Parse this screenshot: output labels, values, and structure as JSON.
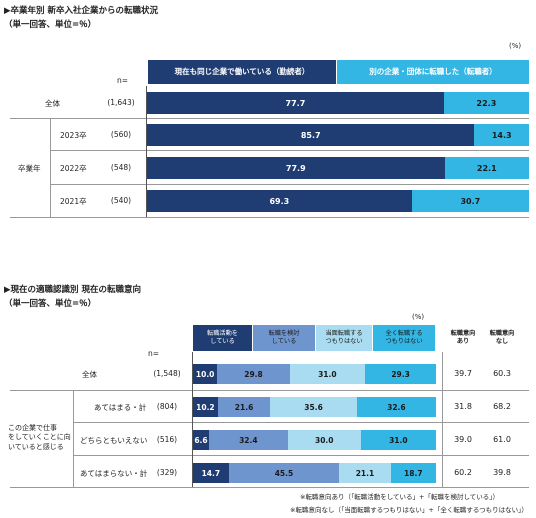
{
  "chart1": {
    "title": "▶卒業年別 新卒入社企業からの転職状況",
    "subtitle": "（単一回答、単位=％）",
    "unit": "(%)",
    "n_label": "n=",
    "legend": [
      {
        "label": "現在も同じ企業で働いている（勤続者）",
        "color": "#1f3d73"
      },
      {
        "label": "別の企業・団体に転職した（転職者）",
        "color": "#33b6e3"
      }
    ],
    "group_label": "卒業年",
    "rows": [
      {
        "label": "全体",
        "n": "(1,643)",
        "values": [
          77.7,
          22.3
        ],
        "display": [
          "77.7",
          "22.3"
        ]
      },
      {
        "label": "2023卒",
        "n": "(560)",
        "values": [
          85.7,
          14.3
        ],
        "display": [
          "85.7",
          "14.3"
        ]
      },
      {
        "label": "2022卒",
        "n": "(548)",
        "values": [
          77.9,
          22.1
        ],
        "display": [
          "77.9",
          "22.1"
        ]
      },
      {
        "label": "2021卒",
        "n": "(540)",
        "values": [
          69.3,
          30.7
        ],
        "display": [
          "69.3",
          "30.7"
        ]
      }
    ]
  },
  "chart2": {
    "title": "▶現在の適職認識別 現在の転職意向",
    "subtitle": "（単一回答、単位=％）",
    "unit": "(%)",
    "n_label": "n=",
    "legend": [
      {
        "label": "転職活動を\nしている",
        "color": "#1f3d73",
        "dark": true
      },
      {
        "label": "転職を検討\nしている",
        "color": "#6f95cf",
        "dark": false
      },
      {
        "label": "当面転職する\nつもりはない",
        "color": "#a9dcf0",
        "dark": false
      },
      {
        "label": "全く転職する\nつもりはない",
        "color": "#33b6e3",
        "dark": false
      }
    ],
    "extra_cols": [
      "転職意向\nあり",
      "転職意向\nなし"
    ],
    "group_label": "この企業で仕事\nをしていくことに向\nいていると感じる",
    "rows": [
      {
        "label": "全体",
        "n": "(1,548)",
        "values": [
          10.0,
          29.8,
          31.0,
          29.3
        ],
        "display": [
          "10.0",
          "29.8",
          "31.0",
          "29.3"
        ],
        "extra": [
          "39.7",
          "60.3"
        ]
      },
      {
        "label": "あてはまる・計",
        "n": "(804)",
        "values": [
          10.2,
          21.6,
          35.6,
          32.6
        ],
        "display": [
          "10.2",
          "21.6",
          "35.6",
          "32.6"
        ],
        "extra": [
          "31.8",
          "68.2"
        ]
      },
      {
        "label": "どちらともいえない",
        "n": "(516)",
        "values": [
          6.6,
          32.4,
          30.0,
          31.0
        ],
        "display": [
          "6.6",
          "32.4",
          "30.0",
          "31.0"
        ],
        "extra": [
          "39.0",
          "61.0"
        ]
      },
      {
        "label": "あてはまらない・計",
        "n": "(329)",
        "values": [
          14.7,
          45.5,
          21.1,
          18.7
        ],
        "display": [
          "14.7",
          "45.5",
          "21.1",
          "18.7"
        ],
        "extra": [
          "60.2",
          "39.8"
        ]
      }
    ],
    "notes": [
      "※転職意向あり（「転職活動をしている」+「転職を検討している」）",
      "※転職意向なし（「当面転職するつもりはない」+「全く転職するつもりはない」）"
    ]
  },
  "chart_data": [
    {
      "type": "bar",
      "stacked": true,
      "orientation": "horizontal",
      "title": "▶卒業年別 新卒入社企業からの転職状況",
      "categories": [
        "全体",
        "2023卒",
        "2022卒",
        "2021卒"
      ],
      "series": [
        {
          "name": "現在も同じ企業で働いている（勤続者）",
          "values": [
            77.7,
            85.7,
            77.9,
            69.3
          ]
        },
        {
          "name": "別の企業・団体に転職した（転職者）",
          "values": [
            22.3,
            14.3,
            22.1,
            30.7
          ]
        }
      ],
      "xlim": [
        0,
        100
      ]
    },
    {
      "type": "bar",
      "stacked": true,
      "orientation": "horizontal",
      "title": "▶現在の適職認識別 現在の転職意向",
      "categories": [
        "全体",
        "あてはまる・計",
        "どちらともいえない",
        "あてはまらない・計"
      ],
      "series": [
        {
          "name": "転職活動をしている",
          "values": [
            10.0,
            10.2,
            6.6,
            14.7
          ]
        },
        {
          "name": "転職を検討している",
          "values": [
            29.8,
            21.6,
            32.4,
            45.5
          ]
        },
        {
          "name": "当面転職するつもりはない",
          "values": [
            31.0,
            35.6,
            30.0,
            21.1
          ]
        },
        {
          "name": "全く転職するつもりはない",
          "values": [
            29.3,
            32.6,
            31.0,
            18.7
          ]
        }
      ],
      "xlim": [
        0,
        100
      ]
    }
  ]
}
